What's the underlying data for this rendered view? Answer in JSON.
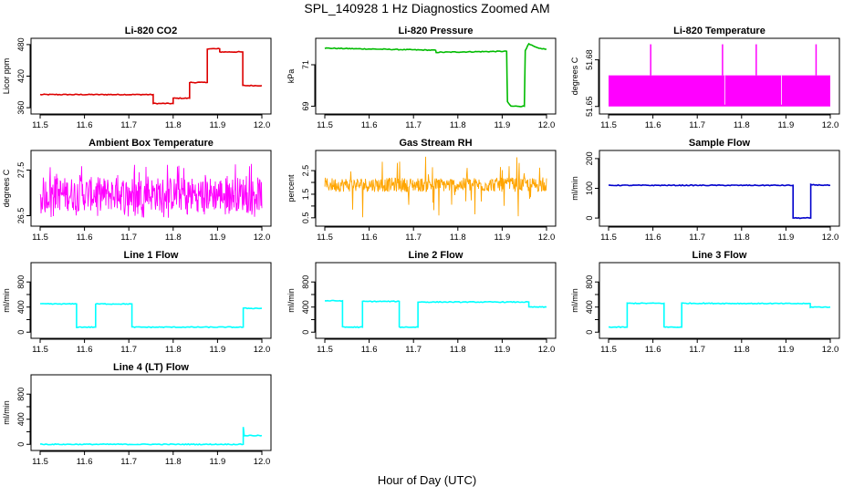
{
  "page": {
    "title": "SPL_140928 1 Hz Diagnostics Zoomed AM",
    "xlabel": "Hour of Day (UTC)"
  },
  "chart_data": [
    {
      "type": "line",
      "title": "Li-820 CO2",
      "ylabel": "Licor ppm",
      "color": "#dd0000",
      "xlim": [
        11.5,
        12.0
      ],
      "xticks": [
        11.5,
        11.6,
        11.7,
        11.8,
        11.9,
        12.0
      ],
      "ylim": [
        355,
        485
      ],
      "yticks": [
        360,
        420,
        480
      ],
      "series": [
        {
          "segments": [
            [
              [
                11.5,
                385
              ],
              [
                11.755,
                385
              ],
              [
                11.755,
                368
              ],
              [
                11.8,
                368
              ],
              [
                11.8,
                378
              ],
              [
                11.837,
                378
              ],
              [
                11.837,
                408
              ],
              [
                11.877,
                408
              ],
              [
                11.877,
                472
              ],
              [
                11.905,
                472
              ],
              [
                11.905,
                466
              ],
              [
                11.957,
                466
              ],
              [
                11.957,
                402
              ],
              [
                12.0,
                402
              ]
            ]
          ]
        }
      ]
    },
    {
      "type": "line",
      "title": "Li-820 Pressure",
      "ylabel": "kPa",
      "color": "#00bb00",
      "xlim": [
        11.5,
        12.0
      ],
      "xticks": [
        11.5,
        11.6,
        11.7,
        11.8,
        11.9,
        12.0
      ],
      "ylim": [
        68.8,
        72.1
      ],
      "yticks": [
        69,
        71
      ],
      "series": [
        {
          "segments": [
            [
              [
                11.5,
                71.8
              ],
              [
                11.75,
                71.7
              ],
              [
                11.751,
                71.6
              ],
              [
                11.91,
                71.65
              ],
              [
                11.912,
                69.2
              ],
              [
                11.92,
                69.0
              ],
              [
                11.95,
                69.0
              ],
              [
                11.952,
                71.7
              ],
              [
                11.96,
                72.0
              ],
              [
                11.98,
                71.8
              ],
              [
                12.0,
                71.75
              ]
            ]
          ]
        }
      ]
    },
    {
      "type": "area",
      "title": "Li-820 Temperature",
      "ylabel": "degrees C",
      "color": "#ff00ff",
      "xlim": [
        11.5,
        12.0
      ],
      "xticks": [
        11.5,
        11.6,
        11.7,
        11.8,
        11.9,
        12.0
      ],
      "ylim": [
        51.6475,
        51.6915
      ],
      "yticks": [
        51.65,
        51.68
      ],
      "series": [
        {
          "band": {
            "low": 51.65,
            "high": 51.67,
            "gaps": [
              11.762,
              11.89
            ]
          },
          "spikes": [
            11.595,
            11.757,
            11.833,
            11.968
          ],
          "spike_top": 51.69
        }
      ]
    },
    {
      "type": "line",
      "title": "Ambient Box Temperature",
      "ylabel": "degrees C",
      "color": "#ff00ff",
      "xlim": [
        11.5,
        12.0
      ],
      "xticks": [
        11.5,
        11.6,
        11.7,
        11.8,
        11.9,
        12.0
      ],
      "ylim": [
        26.35,
        27.85
      ],
      "yticks": [
        26.5,
        27.5
      ],
      "series": [
        {
          "band": {
            "low": 26.6,
            "high": 27.35,
            "envelope_low": 26.45,
            "envelope_high": 27.65
          }
        }
      ]
    },
    {
      "type": "line",
      "title": "Gas Stream RH",
      "ylabel": "percent",
      "color": "#ffa500",
      "xlim": [
        11.5,
        12.0
      ],
      "xticks": [
        11.5,
        11.6,
        11.7,
        11.8,
        11.9,
        12.0
      ],
      "ylim": [
        0.3,
        3.2
      ],
      "yticks": [
        0.5,
        1.5,
        2.5
      ],
      "yticks_minor": [
        1.0,
        2.0
      ],
      "series": [
        {
          "band": {
            "low": 1.6,
            "high": 2.2,
            "envelope_low": 0.5,
            "envelope_high": 3.1
          }
        }
      ]
    },
    {
      "type": "line",
      "title": "Sample Flow",
      "ylabel": "ml/min",
      "color": "#0000cc",
      "xlim": [
        11.5,
        12.0
      ],
      "xticks": [
        11.5,
        11.6,
        11.7,
        11.8,
        11.9,
        12.0
      ],
      "ylim": [
        -15,
        215
      ],
      "yticks": [
        0,
        100,
        200
      ],
      "series": [
        {
          "segments": [
            [
              [
                11.5,
                110
              ],
              [
                11.916,
                110
              ],
              [
                11.916,
                0
              ],
              [
                11.956,
                0
              ],
              [
                11.956,
                112
              ],
              [
                12.0,
                110
              ]
            ]
          ]
        }
      ]
    },
    {
      "type": "line",
      "title": "Line 1 Flow",
      "ylabel": "ml/min",
      "color": "#00ffff",
      "xlim": [
        11.5,
        12.0
      ],
      "xticks": [
        11.5,
        11.6,
        11.7,
        11.8,
        11.9,
        12.0
      ],
      "ylim": [
        -40,
        1050
      ],
      "yticks": [
        0,
        400,
        800
      ],
      "yticks_minor": [
        200,
        600
      ],
      "series": [
        {
          "segments": [
            [
              [
                11.5,
                450
              ],
              [
                11.582,
                450
              ],
              [
                11.582,
                80
              ],
              [
                11.625,
                80
              ],
              [
                11.625,
                450
              ],
              [
                11.707,
                450
              ],
              [
                11.707,
                80
              ],
              [
                11.958,
                80
              ],
              [
                11.958,
                380
              ],
              [
                12.0,
                380
              ]
            ]
          ]
        }
      ]
    },
    {
      "type": "line",
      "title": "Line 2 Flow",
      "ylabel": "ml/min",
      "color": "#00ffff",
      "xlim": [
        11.5,
        12.0
      ],
      "xticks": [
        11.5,
        11.6,
        11.7,
        11.8,
        11.9,
        12.0
      ],
      "ylim": [
        -40,
        1050
      ],
      "yticks": [
        0,
        400,
        800
      ],
      "yticks_minor": [
        200,
        600
      ],
      "series": [
        {
          "segments": [
            [
              [
                11.5,
                500
              ],
              [
                11.54,
                500
              ],
              [
                11.54,
                80
              ],
              [
                11.585,
                80
              ],
              [
                11.585,
                490
              ],
              [
                11.668,
                490
              ],
              [
                11.668,
                80
              ],
              [
                11.71,
                80
              ],
              [
                11.71,
                480
              ],
              [
                11.96,
                480
              ],
              [
                11.96,
                400
              ],
              [
                12.0,
                400
              ]
            ]
          ]
        }
      ]
    },
    {
      "type": "line",
      "title": "Line 3 Flow",
      "ylabel": "ml/min",
      "color": "#00ffff",
      "xlim": [
        11.5,
        12.0
      ],
      "xticks": [
        11.5,
        11.6,
        11.7,
        11.8,
        11.9,
        12.0
      ],
      "ylim": [
        -40,
        1050
      ],
      "yticks": [
        0,
        400,
        800
      ],
      "yticks_minor": [
        200,
        600
      ],
      "series": [
        {
          "segments": [
            [
              [
                11.5,
                80
              ],
              [
                11.542,
                80
              ],
              [
                11.542,
                460
              ],
              [
                11.625,
                460
              ],
              [
                11.625,
                80
              ],
              [
                11.665,
                80
              ],
              [
                11.665,
                460
              ],
              [
                11.955,
                455
              ],
              [
                11.955,
                400
              ],
              [
                12.0,
                400
              ]
            ]
          ]
        }
      ]
    },
    {
      "type": "line",
      "title": "Line 4 (LT) Flow",
      "ylabel": "ml/min",
      "color": "#00ffff",
      "xlim": [
        11.5,
        12.0
      ],
      "xticks": [
        11.5,
        11.6,
        11.7,
        11.8,
        11.9,
        12.0
      ],
      "ylim": [
        -40,
        1050
      ],
      "yticks": [
        0,
        400,
        800
      ],
      "yticks_minor": [
        200,
        600
      ],
      "series": [
        {
          "segments": [
            [
              [
                11.5,
                0
              ],
              [
                11.958,
                0
              ],
              [
                11.958,
                280
              ],
              [
                11.96,
                140
              ],
              [
                12.0,
                140
              ]
            ]
          ]
        }
      ]
    }
  ]
}
